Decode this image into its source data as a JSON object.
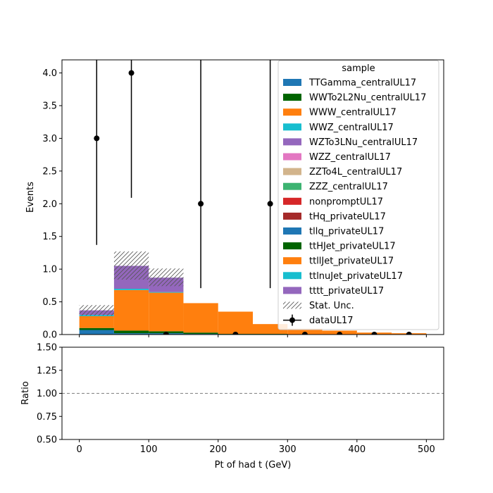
{
  "chart_data": {
    "type": "bar",
    "top": {
      "ylabel": "Events",
      "ylim": [
        0,
        4.2
      ],
      "yticks": [
        0.0,
        0.5,
        1.0,
        1.5,
        2.0,
        2.5,
        3.0,
        3.5,
        4.0
      ],
      "ytick_labels": [
        "0.0",
        "0.5",
        "1.0",
        "1.5",
        "2.0",
        "2.5",
        "3.0",
        "3.5",
        "4.0"
      ]
    },
    "bottom": {
      "ylabel": "Ratio",
      "ylim": [
        0.5,
        1.5
      ],
      "yticks": [
        0.5,
        0.75,
        1.0,
        1.25,
        1.5
      ],
      "ytick_labels": [
        "0.50",
        "0.75",
        "1.00",
        "1.25",
        "1.50"
      ],
      "reference_line": 1.0
    },
    "xlabel": "Pt of had t (GeV)",
    "xlim": [
      -25,
      525
    ],
    "xticks": [
      0,
      100,
      200,
      300,
      400,
      500
    ],
    "xtick_labels": [
      "0",
      "100",
      "200",
      "300",
      "400",
      "500"
    ],
    "bin_edges": [
      0,
      50,
      100,
      150,
      200,
      250,
      300,
      350,
      400,
      450,
      500
    ],
    "series": [
      {
        "name": "TTGamma_centralUL17",
        "color": "#1f77b4",
        "values": [
          0,
          0,
          0,
          0,
          0,
          0,
          0,
          0,
          0,
          0
        ]
      },
      {
        "name": "WWTo2L2Nu_centralUL17",
        "color": "#006400",
        "values": [
          0,
          0,
          0,
          0,
          0,
          0,
          0,
          0,
          0,
          0
        ]
      },
      {
        "name": "WWW_centralUL17",
        "color": "#ff7f0e",
        "values": [
          0,
          0,
          0,
          0,
          0,
          0,
          0,
          0,
          0,
          0
        ]
      },
      {
        "name": "WWZ_centralUL17",
        "color": "#17becf",
        "values": [
          0,
          0,
          0,
          0,
          0,
          0,
          0,
          0,
          0,
          0
        ]
      },
      {
        "name": "WZTo3LNu_centralUL17",
        "color": "#9467bd",
        "values": [
          0,
          0,
          0,
          0,
          0,
          0,
          0,
          0,
          0,
          0
        ]
      },
      {
        "name": "WZZ_centralUL17",
        "color": "#e377c2",
        "values": [
          0,
          0,
          0,
          0,
          0,
          0,
          0,
          0,
          0,
          0
        ]
      },
      {
        "name": "ZZTo4L_centralUL17",
        "color": "#d2b48c",
        "values": [
          0,
          0,
          0,
          0,
          0,
          0,
          0,
          0,
          0,
          0
        ]
      },
      {
        "name": "ZZZ_centralUL17",
        "color": "#3cb371",
        "values": [
          0,
          0,
          0,
          0,
          0,
          0,
          0,
          0,
          0,
          0
        ]
      },
      {
        "name": "nonpromptUL17",
        "color": "#d62728",
        "values": [
          0,
          0,
          0,
          0,
          0,
          0,
          0,
          0,
          0,
          0
        ]
      },
      {
        "name": "tHq_privateUL17",
        "color": "#a52a2a",
        "values": [
          0,
          0,
          0,
          0,
          0,
          0,
          0,
          0,
          0,
          0
        ]
      },
      {
        "name": "tllq_privateUL17",
        "color": "#1f77b4",
        "values": [
          0.07,
          0.02,
          0.02,
          0.01,
          0.0,
          0.0,
          0.0,
          0.0,
          0.0,
          0.0
        ]
      },
      {
        "name": "ttHJet_privateUL17",
        "color": "#006400",
        "values": [
          0.03,
          0.04,
          0.03,
          0.02,
          0.01,
          0.01,
          0.0,
          0.0,
          0.0,
          0.0
        ]
      },
      {
        "name": "ttllJet_privateUL17",
        "color": "#ff7f0e",
        "values": [
          0.18,
          0.62,
          0.59,
          0.45,
          0.34,
          0.15,
          0.09,
          0.06,
          0.03,
          0.02
        ]
      },
      {
        "name": "ttlnuJet_privateUL17",
        "color": "#17becf",
        "values": [
          0.02,
          0.02,
          0.01,
          0.0,
          0.0,
          0.0,
          0.0,
          0.0,
          0.0,
          0.0
        ]
      },
      {
        "name": "tttt_privateUL17",
        "color": "#9467bd",
        "values": [
          0.07,
          0.35,
          0.22,
          0.0,
          0.0,
          0.0,
          0.0,
          0.0,
          0.0,
          0.0
        ]
      }
    ],
    "stat_unc": {
      "name": "Stat. Unc.",
      "up": [
        0.45,
        1.27,
        1.01,
        0.48,
        0.36,
        0.16,
        0.09,
        0.06,
        0.03,
        0.02
      ],
      "down": [
        0.29,
        0.84,
        0.74,
        0.48,
        0.36,
        0.16,
        0.09,
        0.06,
        0.03,
        0.02
      ]
    },
    "data": {
      "name": "dataUL17",
      "x": [
        25,
        75,
        125,
        175,
        225,
        275,
        325,
        375,
        425,
        475
      ],
      "y": [
        3,
        4,
        0,
        2,
        0,
        2,
        0,
        0,
        0,
        0
      ],
      "yerr_low": [
        1.63,
        1.91,
        0,
        1.29,
        0,
        1.29,
        0,
        0,
        0,
        0
      ],
      "yerr_high": [
        4.2,
        4.2,
        0,
        4.2,
        0,
        4.2,
        0,
        0,
        0,
        0
      ]
    },
    "legend": {
      "title": "sample",
      "placement": "top-right"
    },
    "grid": false
  }
}
